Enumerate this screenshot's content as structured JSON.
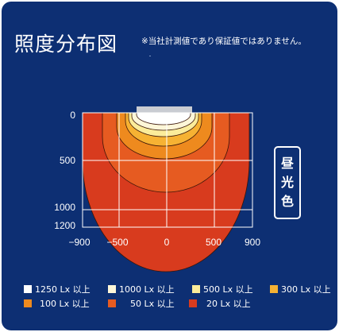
{
  "title": "照度分布図",
  "note": "※当社計測値であり保証値ではありません。",
  "color_badge": [
    "昼",
    "光",
    "色"
  ],
  "axes": {
    "x_ticks": [
      "−900",
      "−500",
      "0",
      "500",
      "900"
    ],
    "y_ticks": [
      "0",
      "500",
      "1000",
      "1200"
    ]
  },
  "legend": [
    {
      "label": "1250 Lx 以上",
      "color": "#ffffff"
    },
    {
      "label": "1000 Lx 以上",
      "color": "#fdf6d8"
    },
    {
      "label": "500 Lx 以上",
      "color": "#fbec9a"
    },
    {
      "label": "300 Lx 以上",
      "color": "#f6b233"
    },
    {
      "label": "100 Lx 以上",
      "color": "#ee8a1e"
    },
    {
      "label": "50 Lx 以上",
      "color": "#e65b21"
    },
    {
      "label": "20 Lx 以上",
      "color": "#d83b1e"
    }
  ],
  "chart_data": {
    "type": "heatmap",
    "x_range": [
      -900,
      900
    ],
    "y_range": [
      0,
      1200
    ],
    "x_ticks": [
      -900,
      -500,
      0,
      500,
      900
    ],
    "y_ticks": [
      0,
      500,
      1000,
      1200
    ],
    "levels_lx": [
      1250,
      1000,
      500,
      300,
      100,
      50,
      20
    ],
    "grid": true
  }
}
